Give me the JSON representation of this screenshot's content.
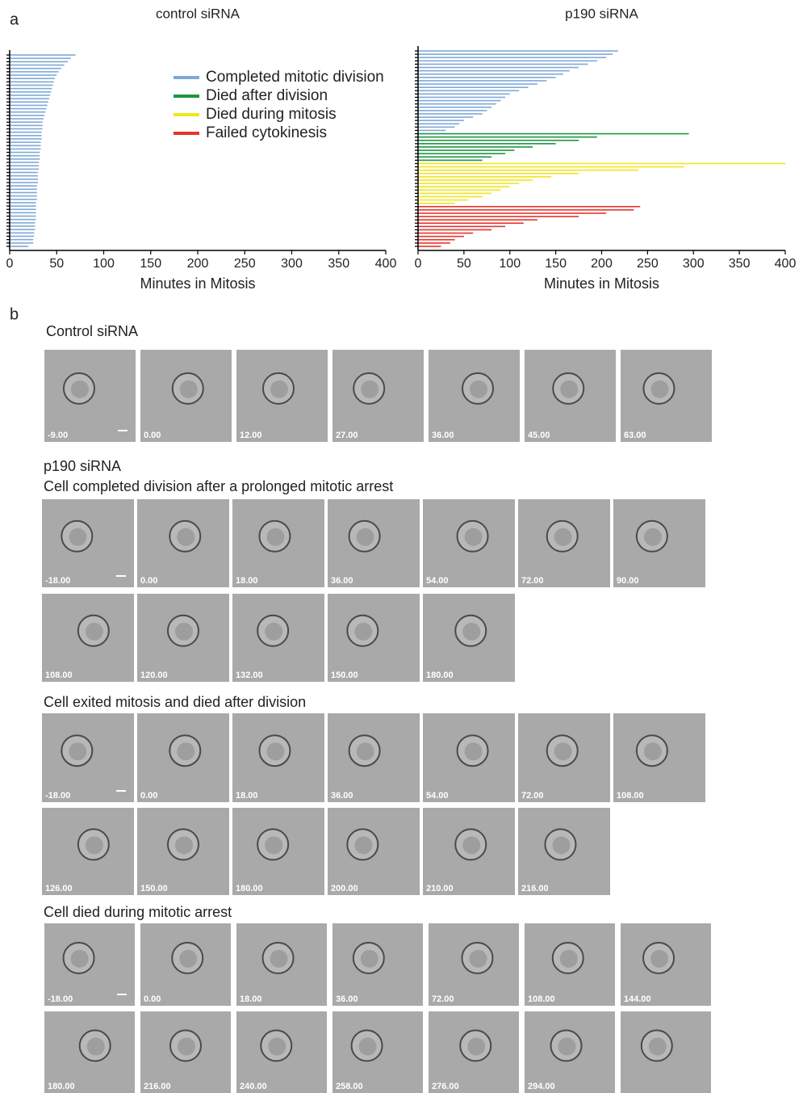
{
  "panel_labels": [
    "a",
    "b"
  ],
  "chart_data": [
    {
      "type": "bar",
      "orientation": "horizontal",
      "title": "control siRNA",
      "x_label": "Minutes in Mitosis",
      "xlim": [
        0,
        400
      ],
      "xticks": [
        0,
        50,
        100,
        150,
        200,
        250,
        300,
        350,
        400
      ],
      "series": [
        {
          "color": "#7fa8d8",
          "values": [
            70,
            65,
            62,
            58,
            55,
            52,
            50,
            48,
            47,
            46,
            45,
            44,
            43,
            42,
            41,
            40,
            39,
            38,
            37,
            36,
            35,
            35,
            35,
            34,
            34,
            34,
            33,
            33,
            33,
            32,
            32,
            32,
            31,
            31,
            31,
            30,
            30,
            30,
            30,
            29,
            29,
            29,
            29,
            29,
            28,
            28,
            28,
            28,
            28,
            28,
            27,
            27,
            27,
            26,
            26,
            25,
            25,
            20
          ]
        }
      ]
    },
    {
      "type": "bar",
      "orientation": "horizontal",
      "title": "p190 siRNA",
      "x_label": "Minutes in Mitosis",
      "xlim": [
        0,
        400
      ],
      "xticks": [
        0,
        50,
        100,
        150,
        200,
        250,
        300,
        350,
        400
      ],
      "series": [
        {
          "name": "Completed mitotic division",
          "color": "#7fa8d8",
          "values": [
            218,
            212,
            205,
            195,
            185,
            175,
            165,
            158,
            150,
            140,
            130,
            120,
            110,
            100,
            95,
            90,
            85,
            80,
            75,
            70,
            60,
            50,
            45,
            40,
            30
          ]
        },
        {
          "name": "Died after  division",
          "color": "#1a9641",
          "values": [
            295,
            195,
            175,
            150,
            125,
            105,
            95,
            80,
            70
          ]
        },
        {
          "name": "Died during mitosis",
          "color": "#f2e51a",
          "values": [
            400,
            290,
            240,
            175,
            145,
            125,
            110,
            100,
            90,
            80,
            70,
            55,
            40
          ]
        },
        {
          "name": "Failed cytokinesis",
          "color": "#e8332a",
          "values": [
            242,
            235,
            205,
            175,
            130,
            115,
            95,
            80,
            60,
            50,
            40,
            35,
            25
          ]
        }
      ]
    }
  ],
  "panel_b": {
    "sections": [
      {
        "title": "Control siRNA",
        "rows": [
          [
            "-9.00",
            "0.00",
            "12.00",
            "27.00",
            "36.00",
            "45.00",
            "63.00"
          ]
        ]
      },
      {
        "title": "p190 siRNA",
        "subtitle": "Cell completed division after a  prolonged mitotic arrest",
        "rows": [
          [
            "-18.00",
            "0.00",
            "18.00",
            "36.00",
            "54.00",
            "72.00",
            "90.00"
          ],
          [
            "108.00",
            "120.00",
            "132.00",
            "150.00",
            "180.00"
          ]
        ]
      },
      {
        "title": "Cell exited mitosis and died after division",
        "rows": [
          [
            "-18.00",
            "0.00",
            "18.00",
            "36.00",
            "54.00",
            "72.00",
            "108.00"
          ],
          [
            "126.00",
            "150.00",
            "180.00",
            "200.00",
            "210.00",
            "216.00"
          ]
        ]
      },
      {
        "title": "Cell died during mitotic arrest",
        "rows": [
          [
            "-18.00",
            "0.00",
            "18.00",
            "36.00",
            "72.00",
            "108.00",
            "144.00"
          ],
          [
            "180.00",
            "216.00",
            "240.00",
            "258.00",
            "276.00",
            "294.00"
          ]
        ]
      }
    ]
  }
}
